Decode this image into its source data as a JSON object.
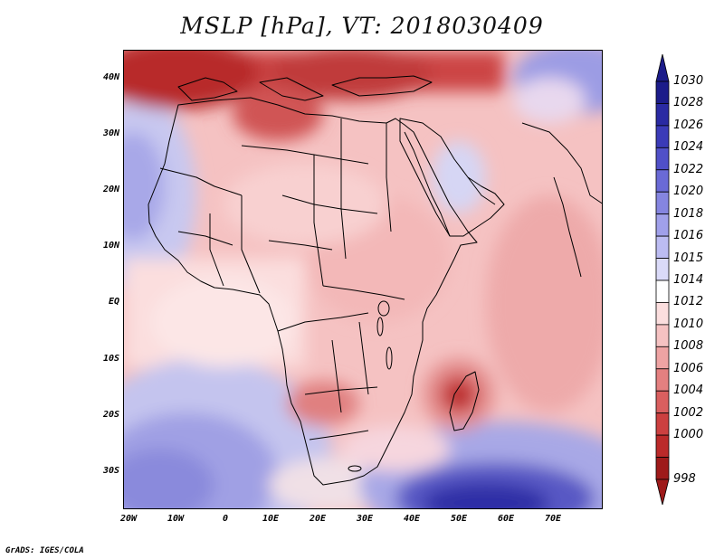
{
  "title": "MSLP [hPa], VT: 2018030409",
  "map": {
    "latitude_labels": [
      "40N",
      "30N",
      "20N",
      "10N",
      "EQ",
      "10S",
      "20S",
      "30S"
    ],
    "longitude_labels": [
      "20W",
      "10W",
      "0",
      "10E",
      "20E",
      "30E",
      "40E",
      "50E",
      "60E",
      "70E"
    ]
  },
  "colorbar": {
    "levels": [
      "1030",
      "1028",
      "1026",
      "1024",
      "1022",
      "1020",
      "1018",
      "1016",
      "1015",
      "1014",
      "1012",
      "1010",
      "1008",
      "1006",
      "1004",
      "1002",
      "1000",
      "998"
    ],
    "colors": [
      "#1c1c8a",
      "#2a2aa3",
      "#3b3bb8",
      "#5050c8",
      "#6a6ad6",
      "#8585e0",
      "#a0a0ea",
      "#bcbcf2",
      "#dadaf8",
      "#ffffff",
      "#fbdede",
      "#f5c2c2",
      "#eea3a3",
      "#e48080",
      "#d95f5f",
      "#cc4040",
      "#bb2a2a",
      "#9e1a1a"
    ]
  },
  "credit": "GrADS: IGES/COLA"
}
